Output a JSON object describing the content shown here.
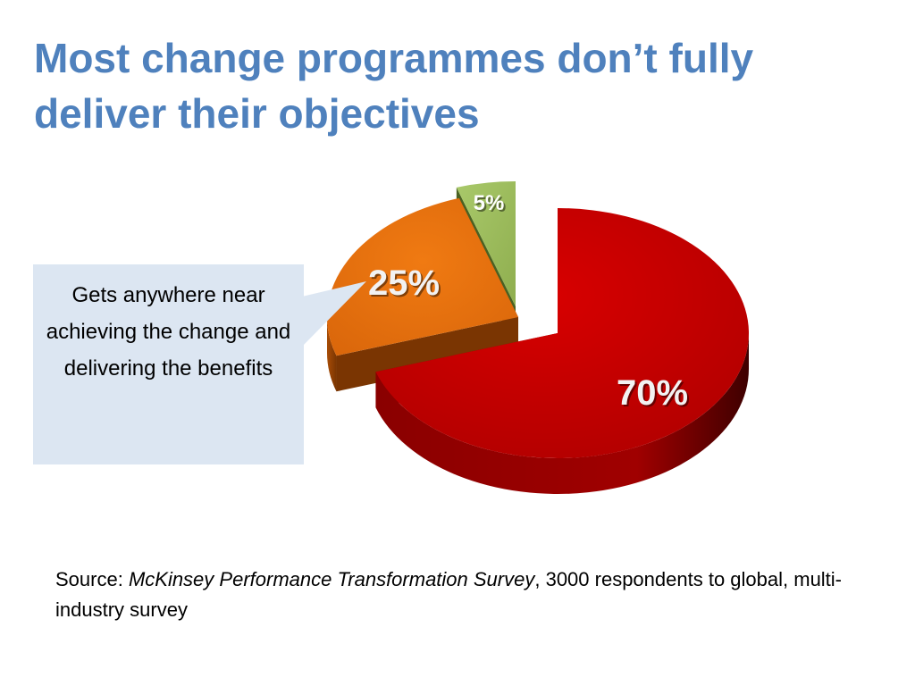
{
  "title": "Most change programmes don’t fully deliver their objectives",
  "callout": {
    "text": "Gets anywhere near achieving the change and delivering the benefits"
  },
  "source": {
    "prefix": "Source: ",
    "publication": "McKinsey Performance Transformation Survey",
    "suffix": ", 3000 respondents to global, multi-industry survey"
  },
  "chart_data": {
    "type": "pie",
    "title": "",
    "slices": [
      {
        "label": "70%",
        "value": 70,
        "color": "#c00000"
      },
      {
        "label": "25%",
        "value": 25,
        "color": "#e36c0a"
      },
      {
        "label": "5%",
        "value": 5,
        "color": "#9bbb59"
      }
    ]
  }
}
